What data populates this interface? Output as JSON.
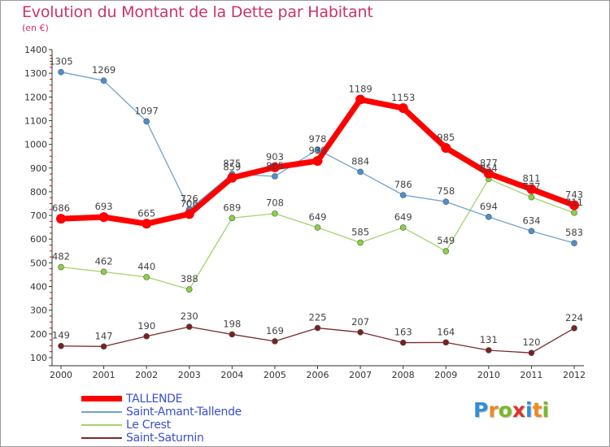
{
  "header": {
    "title": "Evolution du Montant de la Dette par Habitant",
    "subtitle": "(en €)"
  },
  "colors": {
    "title": "#cc3366",
    "axis_text": "#333333",
    "legend_text": "#3a4fcc"
  },
  "logo": {
    "text": "Proxiti",
    "letter_colors": [
      "#2f8fd8",
      "#f08a1c",
      "#79b928",
      "#d8352a",
      "#2f8fd8",
      "#f08a1c",
      "#79b928"
    ]
  },
  "chart_data": {
    "type": "line",
    "title": "Evolution du Montant de la Dette par Habitant",
    "subtitle": "(en €)",
    "xlabel": "",
    "ylabel": "",
    "x": [
      "2000",
      "2001",
      "2002",
      "2003",
      "2004",
      "2005",
      "2006",
      "2007",
      "2008",
      "2009",
      "2010",
      "2011",
      "2012"
    ],
    "y_ticks": [
      "100",
      "200",
      "300",
      "400",
      "500",
      "600",
      "700",
      "800",
      "900",
      "1000",
      "1100",
      "1200",
      "1300",
      "1400"
    ],
    "ylim": [
      100,
      1400
    ],
    "grid": false,
    "legend_position": "bottom-left",
    "series": [
      {
        "name": "TALLENDE",
        "color": "#ff0000",
        "marker_color": "#ff0000",
        "width": 7,
        "values": [
          686,
          693,
          665,
          706,
          859,
          903,
          930,
          1189,
          1153,
          985,
          877,
          811,
          743
        ],
        "labels": [
          "686",
          "693",
          "665",
          "706",
          "859",
          "903",
          "930",
          "1189",
          "1153",
          "985",
          "877",
          "811",
          "743"
        ]
      },
      {
        "name": "Saint-Amant-Tallende",
        "color": "#6fa3cf",
        "marker_color": "#4b8fd1",
        "width": 1.3,
        "values": [
          1305,
          1269,
          1097,
          726,
          875,
          865,
          978,
          884,
          786,
          758,
          694,
          634,
          583
        ],
        "labels": [
          "1305",
          "1269",
          "1097",
          "726",
          "875",
          "865",
          "978",
          "884",
          "786",
          "758",
          "694",
          "634",
          "583"
        ]
      },
      {
        "name": "Le Crest",
        "color": "#a3d36b",
        "marker_color": "#8ad340",
        "width": 1.3,
        "values": [
          482,
          462,
          440,
          388,
          689,
          708,
          649,
          585,
          649,
          549,
          854,
          777,
          711
        ],
        "labels": [
          "482",
          "462",
          "440",
          "388",
          "689",
          "708",
          "649",
          "585",
          "649",
          "549",
          "854",
          "777",
          "711"
        ]
      },
      {
        "name": "Saint-Saturnin",
        "color": "#7a2a2a",
        "marker_color": "#7a2020",
        "width": 1.3,
        "values": [
          149,
          147,
          190,
          230,
          198,
          169,
          225,
          207,
          163,
          164,
          131,
          120,
          224
        ],
        "labels": [
          "149",
          "147",
          "190",
          "230",
          "198",
          "169",
          "225",
          "207",
          "163",
          "164",
          "131",
          "120",
          "224"
        ]
      }
    ]
  }
}
